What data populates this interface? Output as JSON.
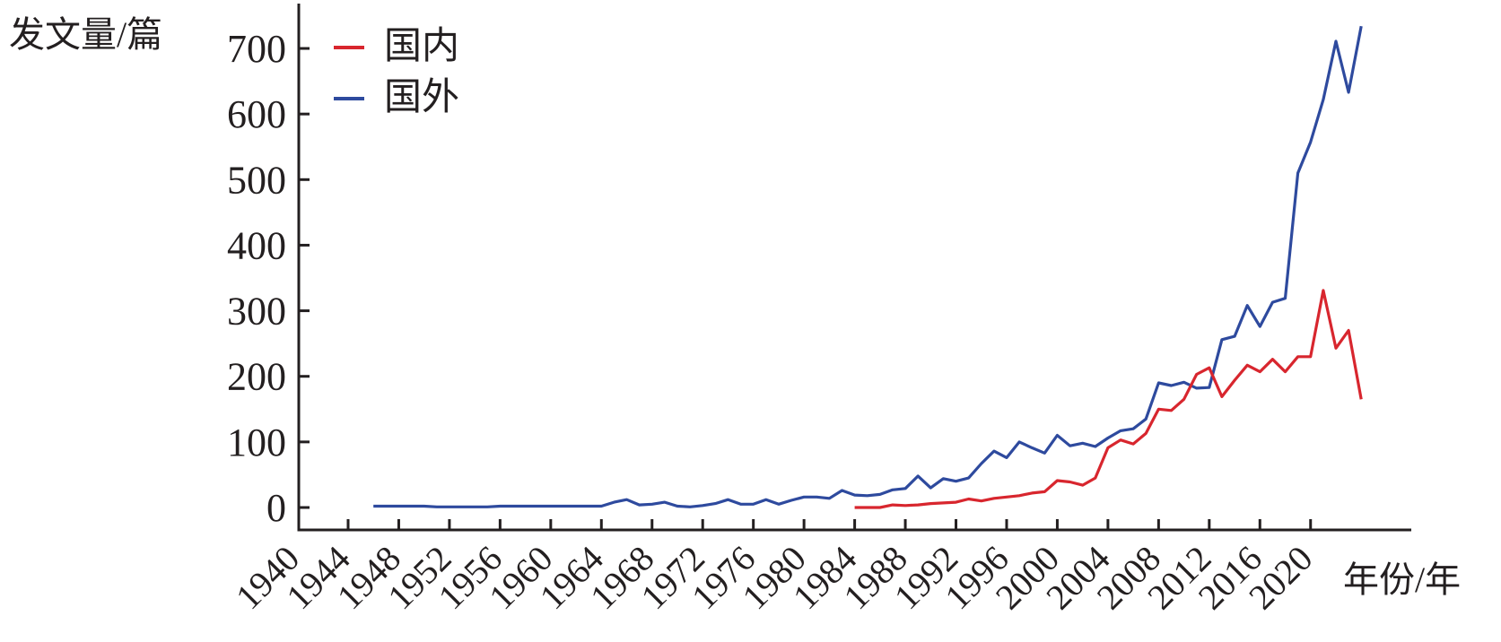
{
  "chart_data": {
    "type": "line",
    "title": "",
    "ylabel": "发文量/篇",
    "xlabel": "年份/年",
    "ylim": [
      0,
      700
    ],
    "yticks": [
      0,
      100,
      200,
      300,
      400,
      500,
      600,
      700
    ],
    "xlim": [
      1940,
      2027
    ],
    "xticks": [
      1940,
      1944,
      1948,
      1952,
      1956,
      1960,
      1964,
      1968,
      1972,
      1976,
      1980,
      1984,
      1988,
      1992,
      1996,
      2000,
      2004,
      2008,
      2012,
      2016,
      2020
    ],
    "grid": false,
    "legend_position": "upper left",
    "series": [
      {
        "name": "国内",
        "color": "#d8262e",
        "x": [
          1984,
          1985,
          1986,
          1987,
          1988,
          1989,
          1990,
          1991,
          1992,
          1993,
          1994,
          1995,
          1996,
          1997,
          1998,
          1999,
          2000,
          2001,
          2002,
          2003,
          2004,
          2005,
          2006,
          2007,
          2008,
          2009,
          2010,
          2011,
          2012,
          2013,
          2014,
          2015,
          2016,
          2017,
          2018,
          2019,
          2020,
          2021,
          2022,
          2023,
          2024
        ],
        "values": [
          0,
          0,
          0,
          4,
          3,
          4,
          6,
          7,
          8,
          13,
          10,
          14,
          16,
          18,
          22,
          24,
          41,
          39,
          34,
          45,
          91,
          103,
          97,
          113,
          150,
          148,
          165,
          203,
          213,
          169,
          194,
          217,
          207,
          226,
          207,
          230,
          230,
          331,
          243,
          270,
          165
        ]
      },
      {
        "name": "国外",
        "color": "#2e4a9e",
        "x": [
          1946,
          1947,
          1948,
          1949,
          1950,
          1951,
          1952,
          1953,
          1954,
          1955,
          1956,
          1957,
          1958,
          1959,
          1960,
          1961,
          1962,
          1963,
          1964,
          1965,
          1966,
          1967,
          1968,
          1969,
          1970,
          1971,
          1972,
          1973,
          1974,
          1975,
          1976,
          1977,
          1978,
          1979,
          1980,
          1981,
          1982,
          1983,
          1984,
          1985,
          1986,
          1987,
          1988,
          1989,
          1990,
          1991,
          1992,
          1993,
          1994,
          1995,
          1996,
          1997,
          1998,
          1999,
          2000,
          2001,
          2002,
          2003,
          2004,
          2005,
          2006,
          2007,
          2008,
          2009,
          2010,
          2011,
          2012,
          2013,
          2014,
          2015,
          2016,
          2017,
          2018,
          2019,
          2020,
          2021,
          2022,
          2023,
          2024
        ],
        "values": [
          2,
          2,
          2,
          2,
          2,
          1,
          1,
          1,
          1,
          1,
          2,
          2,
          2,
          2,
          2,
          2,
          2,
          2,
          2,
          8,
          12,
          4,
          5,
          8,
          2,
          1,
          3,
          6,
          12,
          5,
          5,
          12,
          5,
          11,
          16,
          16,
          14,
          26,
          19,
          18,
          20,
          27,
          29,
          48,
          30,
          44,
          40,
          45,
          67,
          86,
          76,
          100,
          91,
          83,
          110,
          94,
          98,
          93,
          106,
          117,
          120,
          135,
          190,
          186,
          191,
          182,
          183,
          256,
          261,
          308,
          276,
          313,
          319,
          510,
          557,
          622,
          711,
          633,
          734
        ]
      }
    ]
  },
  "axes": {
    "ylabel": "发文量/篇",
    "xlabel": "年份/年"
  },
  "legend": {
    "items": [
      {
        "label": "国内",
        "color": "#d8262e"
      },
      {
        "label": "国外",
        "color": "#2e4a9e"
      }
    ]
  },
  "style": {
    "axis_color": "#231f20"
  }
}
